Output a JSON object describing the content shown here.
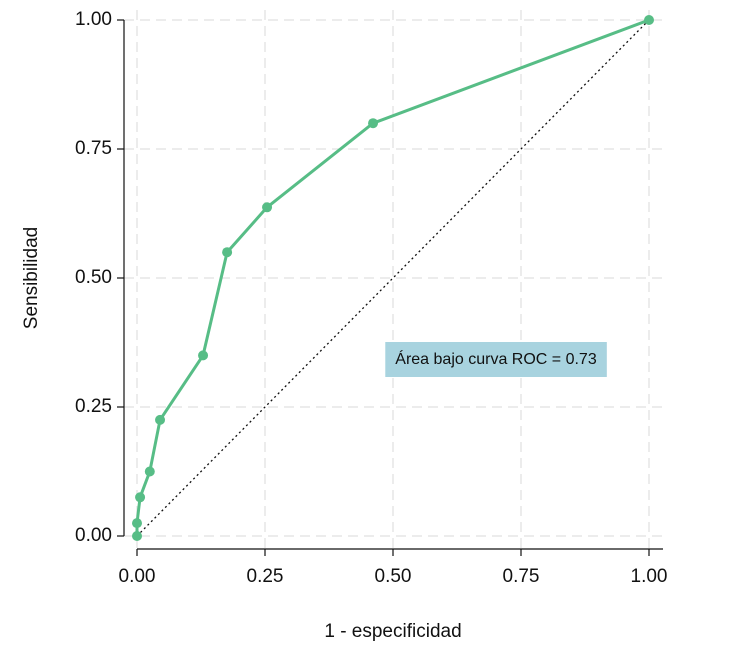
{
  "chart_data": {
    "type": "line",
    "x": [
      0,
      0,
      0.006,
      0.025,
      0.045,
      0.129,
      0.176,
      0.254,
      0.461,
      1
    ],
    "values": [
      0,
      0.025,
      0.075,
      0.125,
      0.225,
      0.35,
      0.55,
      0.637,
      0.8,
      1
    ],
    "color": "#57bd86",
    "markers": true,
    "xlabel": "1 - especificidad",
    "ylabel": "Sensibilidad",
    "annotation": "Área bajo curva ROC = 0.73",
    "reference_line": true,
    "xlim": [
      0,
      1
    ],
    "ylim": [
      0,
      1
    ],
    "xticks": [
      {
        "value": 0,
        "label": "0.00"
      },
      {
        "value": 0.25,
        "label": "0.25"
      },
      {
        "value": 0.5,
        "label": "0.50"
      },
      {
        "value": 0.75,
        "label": "0.75"
      },
      {
        "value": 1,
        "label": "1.00"
      }
    ],
    "yticks": [
      {
        "value": 0,
        "label": "0.00"
      },
      {
        "value": 0.25,
        "label": "0.25"
      },
      {
        "value": 0.5,
        "label": "0.50"
      },
      {
        "value": 0.75,
        "label": "0.75"
      },
      {
        "value": 1,
        "label": "1.00"
      }
    ],
    "grid": true
  }
}
